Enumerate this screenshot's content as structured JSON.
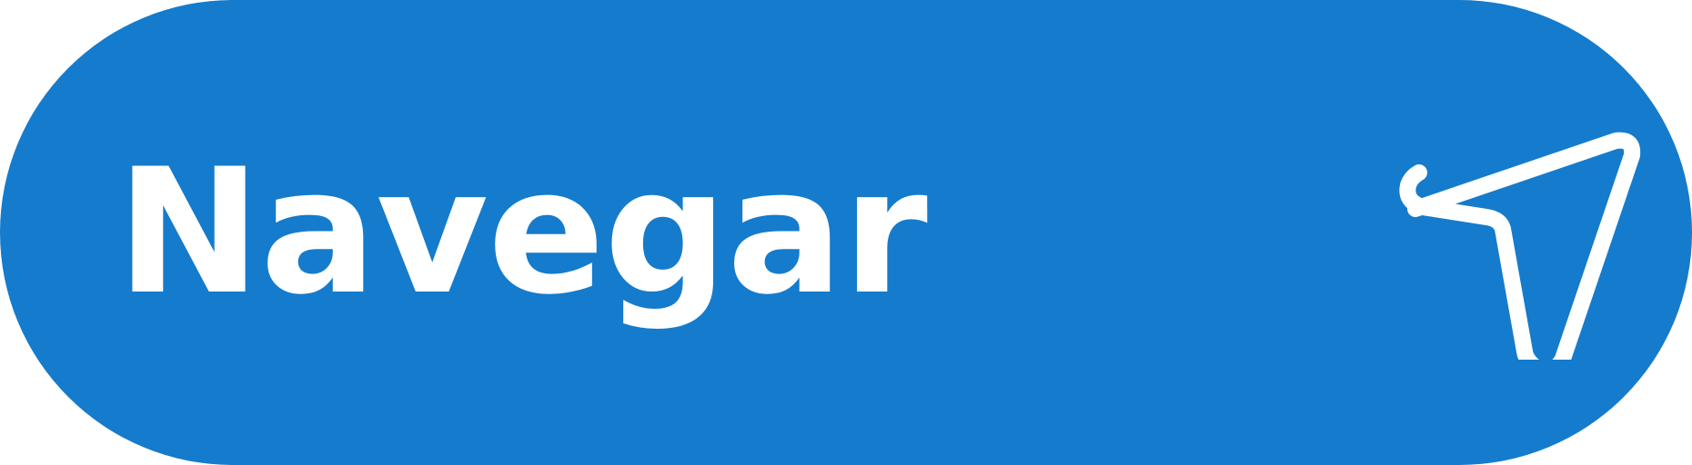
{
  "button": {
    "label": "Navegar",
    "icon": "navigation-arrow-icon",
    "background_color": "#157BCC",
    "foreground_color": "#FFFFFF"
  }
}
